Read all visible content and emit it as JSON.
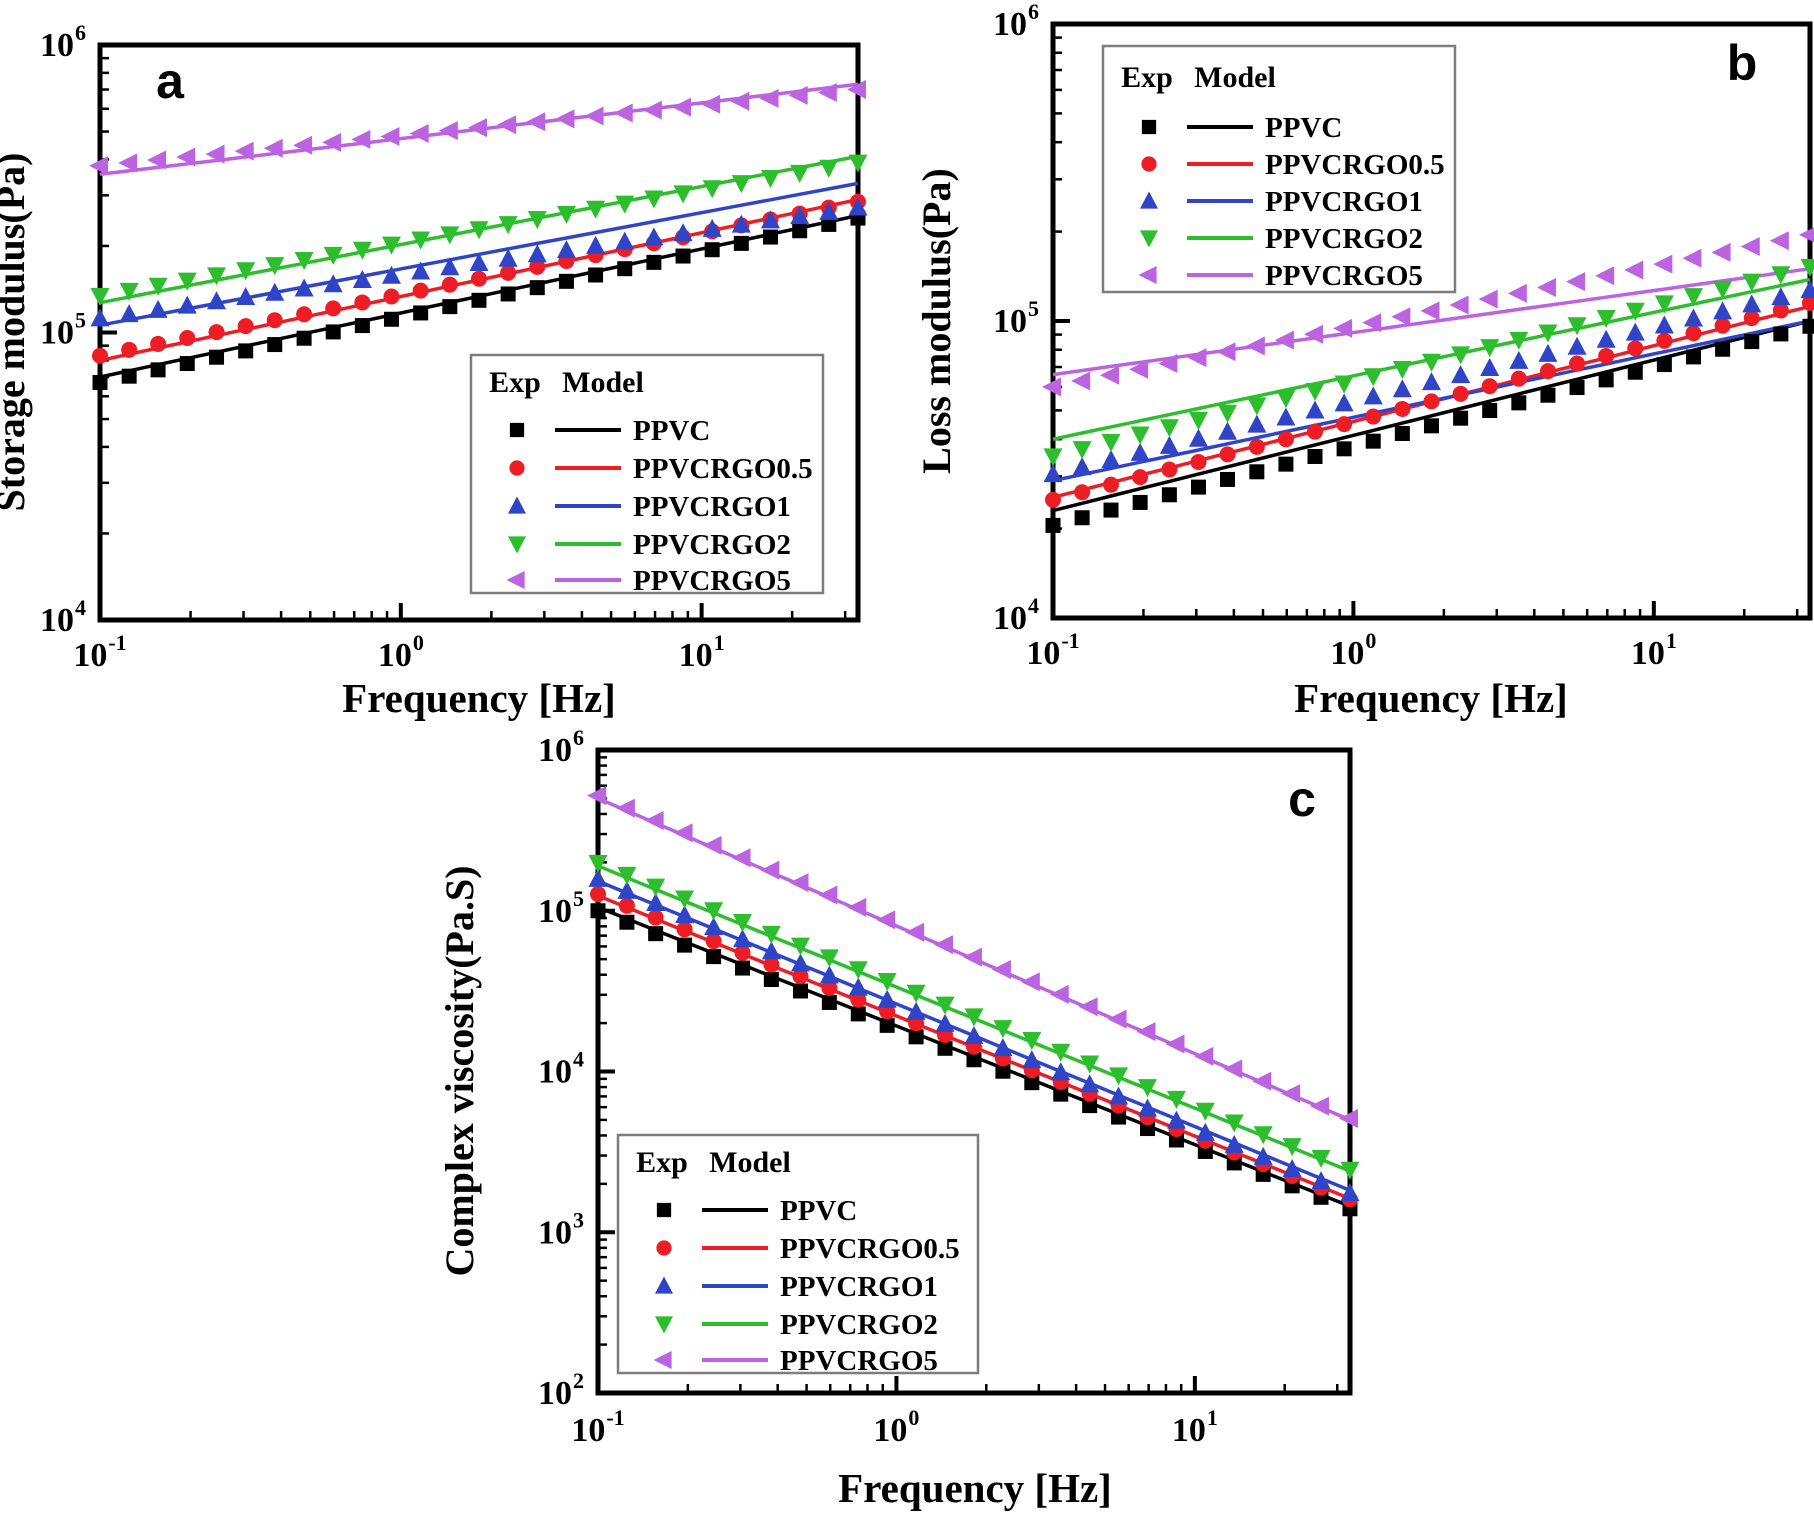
{
  "figure": {
    "tick_base": "10",
    "background": "#ffffff"
  },
  "legend": {
    "exp_header": "Exp",
    "model_header": "Model"
  },
  "series_labels": [
    "PPVC",
    "PPVCRGO0.5",
    "PPVCRGO1",
    "PPVCRGO2",
    "PPVCRGO5"
  ],
  "series_colors": [
    "#000000",
    "#EE1C25",
    "#3044C8",
    "#2DBE2D",
    "#BB63E0"
  ],
  "series_markers": [
    "square",
    "circle",
    "triangle-up",
    "triangle-down",
    "triangle-left"
  ],
  "chart_data": [
    {
      "id": "a",
      "letter": "a",
      "type": "line+scatter",
      "xlabel": "Frequency [Hz]",
      "ylabel": "Storage modulus(Pa)",
      "x_scale": "log",
      "y_scale": "log",
      "xlim": [
        0.1,
        33.1
      ],
      "ylim": [
        10000,
        1000000
      ],
      "x_tick_exponents": [
        -1,
        0,
        1
      ],
      "y_tick_exponents": [
        4,
        5,
        6
      ],
      "legend_position": "lower-right",
      "grid": false,
      "x": [
        0.1,
        0.125,
        0.156,
        0.195,
        0.244,
        0.305,
        0.381,
        0.477,
        0.596,
        0.745,
        0.931,
        1.164,
        1.455,
        1.819,
        2.274,
        2.842,
        3.553,
        4.441,
        5.551,
        6.939,
        8.674,
        10.84,
        13.55,
        16.94,
        21.18,
        26.47,
        33.09
      ],
      "series": [
        {
          "name": "PPVC",
          "color": "#000000",
          "marker": "square",
          "exp_y_start": 67000,
          "exp_y_end": 250000,
          "model_y_start": 70000,
          "model_y_end": 255000
        },
        {
          "name": "PPVCRGO0.5",
          "color": "#EE1C25",
          "marker": "circle",
          "exp_y_start": 83000,
          "exp_y_end": 285000,
          "model_y_start": 80000,
          "model_y_end": 290000
        },
        {
          "name": "PPVCRGO1",
          "color": "#3044C8",
          "marker": "triangle-up",
          "exp_y_start": 112000,
          "exp_y_end": 272000,
          "model_y_start": 106000,
          "model_y_end": 330000
        },
        {
          "name": "PPVCRGO2",
          "color": "#2DBE2D",
          "marker": "triangle-down",
          "exp_y_start": 134000,
          "exp_y_end": 390000,
          "model_y_start": 127000,
          "model_y_end": 410000
        },
        {
          "name": "PPVCRGO5",
          "color": "#BB63E0",
          "marker": "triangle-left",
          "exp_y_start": 380000,
          "exp_y_end": 700000,
          "model_y_start": 355000,
          "model_y_end": 730000
        }
      ]
    },
    {
      "id": "b",
      "letter": "b",
      "type": "line+scatter",
      "xlabel": "Frequency [Hz]",
      "ylabel": "Loss modulus(Pa)",
      "x_scale": "log",
      "y_scale": "log",
      "xlim": [
        0.1,
        33.1
      ],
      "ylim": [
        10000,
        1000000
      ],
      "x_tick_exponents": [
        -1,
        0,
        1
      ],
      "y_tick_exponents": [
        4,
        5,
        6
      ],
      "legend_position": "upper-left",
      "grid": false,
      "x": [
        0.1,
        0.125,
        0.156,
        0.195,
        0.244,
        0.305,
        0.381,
        0.477,
        0.596,
        0.745,
        0.931,
        1.164,
        1.455,
        1.819,
        2.274,
        2.842,
        3.553,
        4.441,
        5.551,
        6.939,
        8.674,
        10.84,
        13.55,
        16.94,
        21.18,
        26.47,
        33.09
      ],
      "series": [
        {
          "name": "PPVC",
          "color": "#000000",
          "marker": "square",
          "exp_y_start": 20500,
          "exp_y_end": 96000,
          "model_y_start": 23000,
          "model_y_end": 100000
        },
        {
          "name": "PPVCRGO0.5",
          "color": "#EE1C25",
          "marker": "circle",
          "exp_y_start": 25000,
          "exp_y_end": 115000,
          "model_y_start": 25500,
          "model_y_end": 112000
        },
        {
          "name": "PPVCRGO1",
          "color": "#3044C8",
          "marker": "triangle-up",
          "exp_y_start": 30500,
          "exp_y_end": 127000,
          "model_y_start": 29000,
          "model_y_end": 100000
        },
        {
          "name": "PPVCRGO2",
          "color": "#2DBE2D",
          "marker": "triangle-down",
          "exp_y_start": 35000,
          "exp_y_end": 152000,
          "model_y_start": 40000,
          "model_y_end": 138000
        },
        {
          "name": "PPVCRGO5",
          "color": "#BB63E0",
          "marker": "triangle-left",
          "exp_y_start": 60000,
          "exp_y_end": 195000,
          "model_y_start": 66000,
          "model_y_end": 150000
        }
      ]
    },
    {
      "id": "c",
      "letter": "c",
      "type": "line+scatter",
      "xlabel": "Frequency [Hz]",
      "ylabel": "Complex viscosity(Pa.S)",
      "x_scale": "log",
      "y_scale": "log",
      "xlim": [
        0.1,
        33.1
      ],
      "ylim": [
        100,
        1000000
      ],
      "x_tick_exponents": [
        -1,
        0,
        1
      ],
      "y_tick_exponents": [
        2,
        3,
        4,
        5,
        6
      ],
      "legend_position": "lower-left",
      "grid": false,
      "x": [
        0.1,
        0.125,
        0.156,
        0.195,
        0.244,
        0.305,
        0.381,
        0.477,
        0.596,
        0.745,
        0.931,
        1.164,
        1.455,
        1.819,
        2.274,
        2.842,
        3.553,
        4.441,
        5.551,
        6.939,
        8.674,
        10.84,
        13.55,
        16.94,
        21.18,
        26.47,
        33.09
      ],
      "series": [
        {
          "name": "PPVC",
          "color": "#000000",
          "marker": "square",
          "exp_y_start": 100000,
          "exp_y_end": 1400,
          "model_y_start": 105000,
          "model_y_end": 1450
        },
        {
          "name": "PPVCRGO0.5",
          "color": "#EE1C25",
          "marker": "circle",
          "exp_y_start": 127000,
          "exp_y_end": 1600,
          "model_y_start": 124000,
          "model_y_end": 1620
        },
        {
          "name": "PPVCRGO1",
          "color": "#3044C8",
          "marker": "triangle-up",
          "exp_y_start": 158000,
          "exp_y_end": 1750,
          "model_y_start": 153000,
          "model_y_end": 1820
        },
        {
          "name": "PPVCRGO2",
          "color": "#2DBE2D",
          "marker": "triangle-down",
          "exp_y_start": 198000,
          "exp_y_end": 2450,
          "model_y_start": 190000,
          "model_y_end": 2400
        },
        {
          "name": "PPVCRGO5",
          "color": "#BB63E0",
          "marker": "triangle-left",
          "exp_y_start": 520000,
          "exp_y_end": 5100,
          "model_y_start": 500000,
          "model_y_end": 5000
        }
      ]
    }
  ]
}
